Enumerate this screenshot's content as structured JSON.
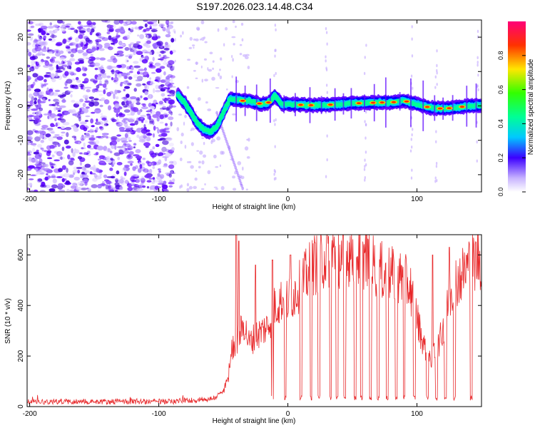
{
  "title": "S197.2026.023.14.48.C34",
  "chart_data": [
    {
      "type": "heatmap",
      "xlabel": "Height of straight line (km)",
      "ylabel": "Frequency (Hz)",
      "xlim": [
        -202,
        150
      ],
      "ylim": [
        -25,
        25
      ],
      "xticks": [
        -200,
        -100,
        0,
        100
      ],
      "xtick_labels": [
        "-200",
        "-100",
        "0",
        "100"
      ],
      "yticks": [
        -20,
        -10,
        0,
        10,
        20
      ],
      "ytick_labels": [
        "-20",
        "-10",
        "0",
        "10",
        "20"
      ],
      "colorbar": {
        "label": "Normalized spectral amplitude",
        "range": [
          0,
          1
        ],
        "ticks": [
          0.0,
          0.2,
          0.4,
          0.6,
          0.8
        ],
        "tick_labels": [
          "0.0",
          "0.2",
          "0.4",
          "0.6",
          "0.8"
        ],
        "colors": [
          "#ffffff",
          "#5a00ff",
          "#0000ff",
          "#00c8ff",
          "#00ff96",
          "#32ff00",
          "#c8ff00",
          "#ffc800",
          "#ff3200",
          "#ff0078"
        ]
      },
      "ridge": {
        "x": [
          -85,
          -80,
          -75,
          -70,
          -65,
          -60,
          -55,
          -50,
          -45,
          -40,
          -35,
          -30,
          -25,
          -20,
          -15,
          -10,
          -5,
          0,
          10,
          20,
          30,
          40,
          50,
          60,
          70,
          80,
          90,
          100,
          110,
          120,
          130,
          140,
          150
        ],
        "y": [
          3,
          1,
          -2,
          -5,
          -7,
          -7.5,
          -6,
          -2,
          2,
          2,
          1.5,
          1.5,
          1,
          0.5,
          1,
          3,
          0.5,
          0.5,
          0.3,
          0.2,
          0.3,
          0.5,
          0.8,
          0.8,
          1,
          1,
          1.5,
          0.5,
          -0.5,
          -0.8,
          -0.5,
          0,
          0.2
        ]
      },
      "hot_spots_x": [
        -35,
        -22,
        -15,
        10,
        18,
        33,
        55,
        66,
        73,
        82,
        92,
        108,
        118,
        125,
        135
      ]
    },
    {
      "type": "line",
      "xlabel": "Height of straight line (km)",
      "ylabel": "SNR (10 * v/v)",
      "xlim": [
        -202,
        150
      ],
      "ylim": [
        0,
        680
      ],
      "xticks": [
        -200,
        -100,
        0,
        100
      ],
      "xtick_labels": [
        "-200",
        "-100",
        "0",
        "100"
      ],
      "yticks": [
        0,
        200,
        400,
        600
      ],
      "ytick_labels": [
        "0",
        "200",
        "400",
        "600"
      ],
      "color": "#e8282a",
      "envelope": {
        "x": [
          -202,
          -90,
          -80,
          -70,
          -60,
          -55,
          -50,
          -46,
          -44,
          -40,
          -36,
          -34,
          -30,
          -25,
          -20,
          -15,
          -10,
          -5,
          0,
          10,
          20,
          30,
          40,
          50,
          60,
          70,
          80,
          90,
          95,
          100,
          105,
          110,
          115,
          120,
          125,
          130,
          135,
          140,
          145,
          150
        ],
        "y": [
          20,
          20,
          25,
          25,
          30,
          40,
          60,
          120,
          220,
          260,
          300,
          330,
          250,
          280,
          300,
          320,
          400,
          420,
          420,
          480,
          560,
          600,
          600,
          610,
          590,
          540,
          520,
          500,
          470,
          350,
          250,
          180,
          220,
          300,
          420,
          500,
          520,
          560,
          580,
          590
        ]
      },
      "dropouts_x": [
        -12,
        -2,
        10,
        18,
        24,
        33,
        38,
        44,
        52,
        57,
        64,
        70,
        77,
        84,
        90,
        98,
        108,
        115,
        122,
        129,
        142
      ],
      "spikes": [
        {
          "x": -40,
          "y": 680
        },
        {
          "x": -38,
          "y": 655
        },
        {
          "x": -25,
          "y": 560
        },
        {
          "x": -12,
          "y": 580
        },
        {
          "x": 2,
          "y": 600
        },
        {
          "x": 112,
          "y": 600
        },
        {
          "x": 125,
          "y": 630
        }
      ]
    }
  ]
}
